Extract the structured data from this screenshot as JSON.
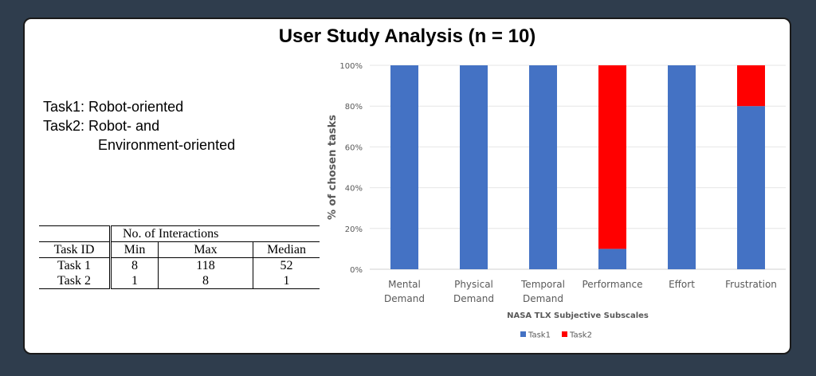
{
  "title": "User Study Analysis (n = 10)",
  "tasks_description": {
    "line1": "Task1: Robot-oriented",
    "line2": "Task2: Robot- and",
    "line3": "Environment-oriented"
  },
  "table": {
    "group_header": "No. of Interactions",
    "columns": [
      "Task ID",
      "Min",
      "Max",
      "Median"
    ],
    "rows": [
      [
        "Task 1",
        "8",
        "118",
        "52"
      ],
      [
        "Task 2",
        "1",
        "8",
        "1"
      ]
    ]
  },
  "colors": {
    "task1": "#4472c4",
    "task2": "#ff0000"
  },
  "chart_data": {
    "type": "bar",
    "stacked": true,
    "title": "",
    "xlabel": "NASA TLX  Subjective Subscales",
    "ylabel": "% of chosen tasks",
    "ylim": [
      0,
      100
    ],
    "yticks": [
      "0%",
      "20%",
      "40%",
      "60%",
      "80%",
      "100%"
    ],
    "categories": [
      [
        "Mental",
        "Demand"
      ],
      [
        "Physical",
        "Demand"
      ],
      [
        "Temporal",
        "Demand"
      ],
      [
        "Performance"
      ],
      [
        "Effort"
      ],
      [
        "Frustration"
      ]
    ],
    "series": [
      {
        "name": "Task1",
        "values": [
          100,
          100,
          100,
          10,
          100,
          80
        ]
      },
      {
        "name": "Task2",
        "values": [
          0,
          0,
          0,
          90,
          0,
          20
        ]
      }
    ],
    "grid": true,
    "legend": "bottom"
  }
}
